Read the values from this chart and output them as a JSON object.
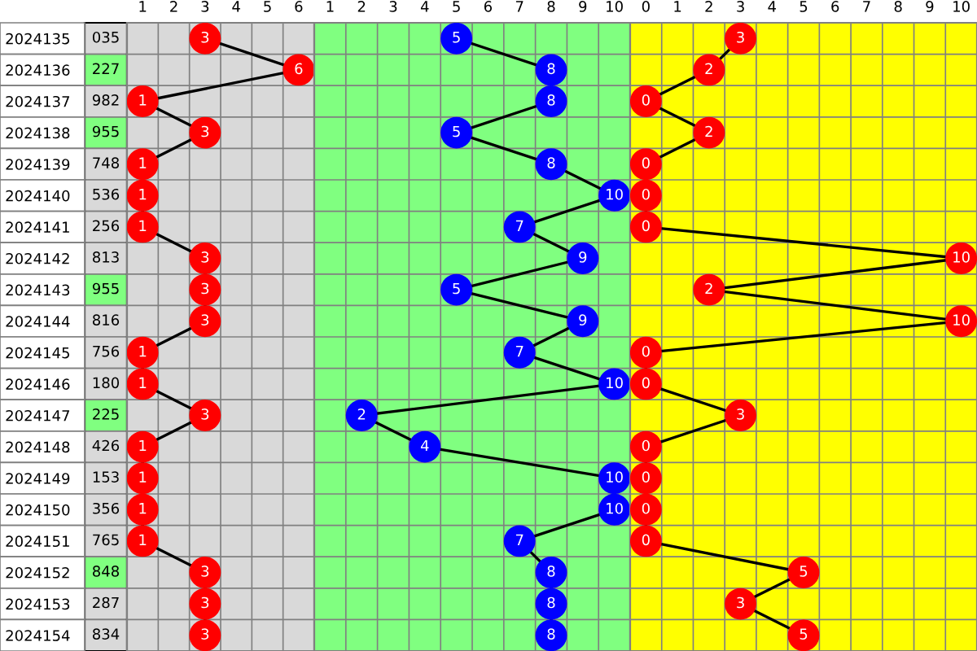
{
  "chart_data": [
    {
      "type": "other",
      "y2_categories": [
        "035",
        "227",
        "982",
        "955",
        "748",
        "536",
        "256",
        "813",
        "955",
        "816",
        "756",
        "180",
        "225",
        "426",
        "153",
        "356",
        "765",
        "848",
        "287",
        "834"
      ],
      "colors": [
        "#d9d9d9",
        "#80ff80",
        "#d9d9d9",
        "#80ff80",
        "#d9d9d9",
        "#d9d9d9",
        "#d9d9d9",
        "#d9d9d9",
        "#80ff80",
        "#d9d9d9",
        "#d9d9d9",
        "#d9d9d9",
        "#80ff80",
        "#d9d9d9",
        "#d9d9d9",
        "#d9d9d9",
        "#d9d9d9",
        "#80ff80",
        "#d9d9d9",
        "#d9d9d9"
      ]
    },
    {
      "type": "line",
      "orientation": "horizontal",
      "categories": [
        "2024135",
        "2024136",
        "2024137",
        "2024138",
        "2024139",
        "2024140",
        "2024141",
        "2024142",
        "2024143",
        "2024144",
        "2024145",
        "2024146",
        "2024147",
        "2024148",
        "2024149",
        "2024150",
        "2024151",
        "2024152",
        "2024153",
        "2024154"
      ],
      "series": [
        {
          "color": "#ff0000",
          "values": [
            3,
            6,
            1,
            3,
            1,
            1,
            1,
            3,
            3,
            3,
            1,
            1,
            3,
            1,
            1,
            1,
            1,
            3,
            3,
            3
          ]
        }
      ],
      "xlim": [
        0.5,
        6.5
      ],
      "xticks": [
        1,
        2,
        3,
        4,
        5,
        6
      ],
      "data_labels": true,
      "grid": true,
      "marker": "circle",
      "bands": [
        {
          "axis": "x",
          "from": 0.5,
          "to": 6.5,
          "color": "#d9d9d9"
        }
      ]
    },
    {
      "type": "line",
      "orientation": "horizontal",
      "categories": [
        null,
        null,
        null,
        null,
        null,
        null,
        null,
        null,
        null,
        null,
        null,
        null,
        null,
        null,
        null,
        null,
        null,
        null,
        null,
        null
      ],
      "series": [
        {
          "color": "#0000ff",
          "values": [
            5,
            8,
            8,
            5,
            8,
            10,
            7,
            9,
            5,
            9,
            7,
            10,
            2,
            4,
            10,
            10,
            7,
            8,
            8,
            8
          ]
        }
      ],
      "xlim": [
        0.5,
        10.5
      ],
      "xticks": [
        1,
        2,
        3,
        4,
        5,
        6,
        7,
        8,
        9,
        10
      ],
      "data_labels": true,
      "grid": true,
      "marker": "circle",
      "tick_labels": "x",
      "bands": [
        {
          "axis": "x",
          "from": 0.5,
          "to": 10.5,
          "color": "#80ff80"
        }
      ]
    },
    {
      "type": "line",
      "orientation": "horizontal",
      "categories": [
        null,
        null,
        null,
        null,
        null,
        null,
        null,
        null,
        null,
        null,
        null,
        null,
        null,
        null,
        null,
        null,
        null,
        null,
        null,
        null
      ],
      "series": [
        {
          "color": "#ff0000",
          "values": [
            3,
            2,
            0,
            2,
            0,
            0,
            0,
            10,
            2,
            10,
            0,
            0,
            3,
            0,
            0,
            0,
            0,
            5,
            3,
            5
          ]
        }
      ],
      "xlim": [
        -0.5,
        10.5
      ],
      "xticks": [
        0,
        1,
        2,
        3,
        4,
        5,
        6,
        7,
        8,
        9,
        10
      ],
      "data_labels": true,
      "grid": true,
      "marker": "circle",
      "tick_labels": "x",
      "bands": [
        {
          "axis": "x",
          "from": -0.5,
          "to": 10.5,
          "color": "#ffff00"
        }
      ]
    }
  ]
}
